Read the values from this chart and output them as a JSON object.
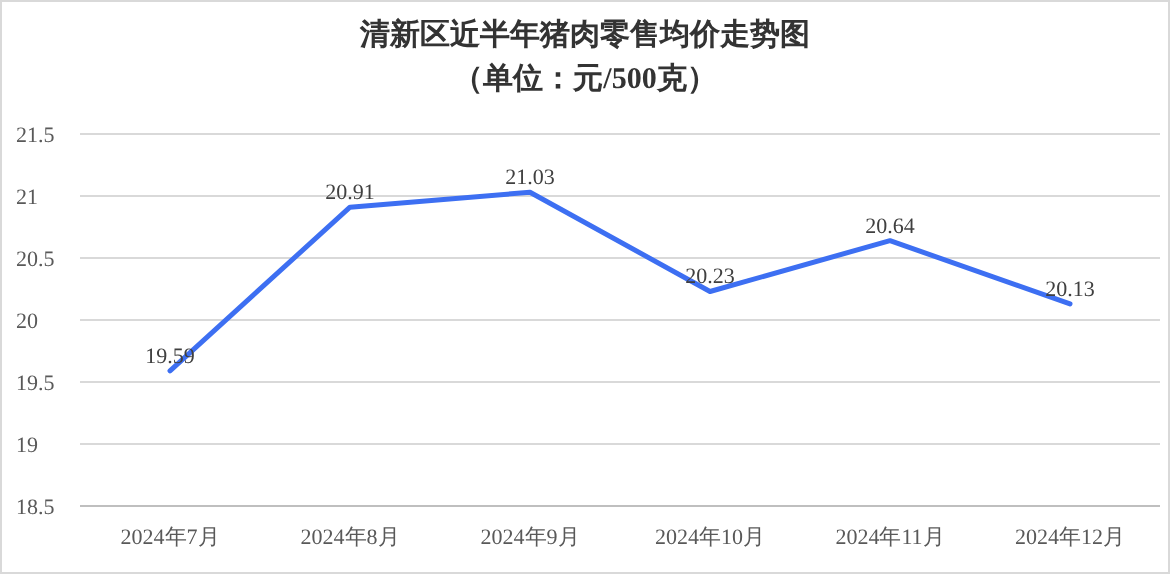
{
  "chart_data": {
    "type": "line",
    "title": "清新区近半年猪肉零售均价走势图",
    "subtitle": "（单位：元/500克）",
    "categories": [
      "2024年7月",
      "2024年8月",
      "2024年9月",
      "2024年10月",
      "2024年11月",
      "2024年12月"
    ],
    "series": [
      {
        "color": "#3d6ff2",
        "values": [
          19.59,
          20.91,
          21.03,
          20.23,
          20.64,
          20.13
        ]
      }
    ],
    "ylim": [
      18.5,
      21.5
    ],
    "yticks": [
      18.5,
      19,
      19.5,
      20,
      20.5,
      21,
      21.5
    ],
    "grid": "y",
    "data_labels": true,
    "marker": "none",
    "line_style": "solid"
  }
}
